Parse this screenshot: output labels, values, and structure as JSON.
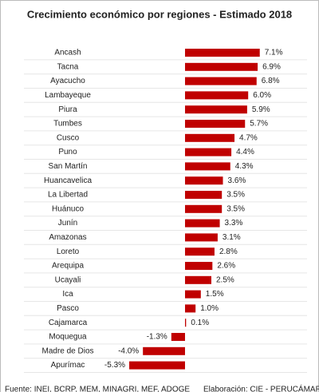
{
  "chart_data": {
    "type": "bar",
    "orientation": "horizontal",
    "title": "Crecimiento económico por regiones - Estimado 2018",
    "categories": [
      "Ancash",
      "Tacna",
      "Ayacucho",
      "Lambayeque",
      "Piura",
      "Tumbes",
      "Cusco",
      "Puno",
      "San Martín",
      "Huancavelica",
      "La Libertad",
      "Huánuco",
      "Junín",
      "Amazonas",
      "Loreto",
      "Arequipa",
      "Ucayali",
      "Ica",
      "Pasco",
      "Cajamarca",
      "Moquegua",
      "Madre de Dios",
      "Apurímac"
    ],
    "values": [
      7.1,
      6.9,
      6.8,
      6.0,
      5.9,
      5.7,
      4.7,
      4.4,
      4.3,
      3.6,
      3.5,
      3.5,
      3.3,
      3.1,
      2.8,
      2.6,
      2.5,
      1.5,
      1.0,
      0.1,
      -1.3,
      -4.0,
      -5.3
    ],
    "value_labels": [
      "7.1%",
      "6.9%",
      "6.8%",
      "6.0%",
      "5.9%",
      "5.7%",
      "4.7%",
      "4.4%",
      "4.3%",
      "3.6%",
      "3.5%",
      "3.5%",
      "3.3%",
      "3.1%",
      "2.8%",
      "2.6%",
      "2.5%",
      "1.5%",
      "1.0%",
      "0.1%",
      "-1.3%",
      "-4.0%",
      "-5.3%"
    ],
    "color": "#c00000",
    "grid": true,
    "source": "Fuente: INEI, BCRP, MEM, MINAGRI, MEF, ADOGE",
    "credit": "Elaboración: CIE - PERUCÁMARAS"
  }
}
